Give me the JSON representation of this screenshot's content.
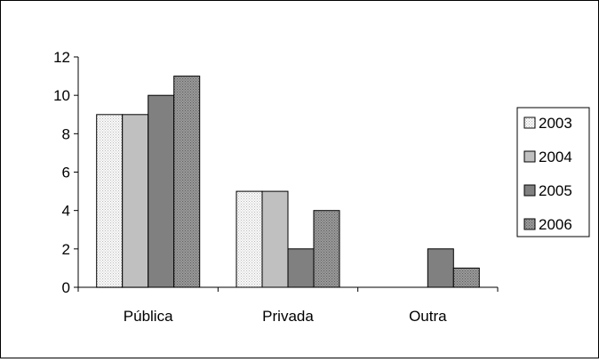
{
  "chart_data": {
    "type": "bar",
    "title": "",
    "xlabel": "",
    "ylabel": "",
    "categories": [
      "Pública",
      "Privada",
      "Outra"
    ],
    "series": [
      {
        "name": "2003",
        "values": [
          9,
          5,
          0
        ],
        "color": "#f4f4f4",
        "pattern": "dots-light"
      },
      {
        "name": "2004",
        "values": [
          9,
          5,
          0
        ],
        "color": "#c0c0c0",
        "pattern": "solid"
      },
      {
        "name": "2005",
        "values": [
          10,
          2,
          2
        ],
        "color": "#808080",
        "pattern": "solid"
      },
      {
        "name": "2006",
        "values": [
          11,
          4,
          1
        ],
        "color": "#8c8c8c",
        "pattern": "dots-dark"
      }
    ],
    "ylim": [
      0,
      12
    ],
    "yticks": [
      "0",
      "2",
      "4",
      "6",
      "8",
      "10",
      "12"
    ],
    "grid": false,
    "legend_position": "right"
  }
}
